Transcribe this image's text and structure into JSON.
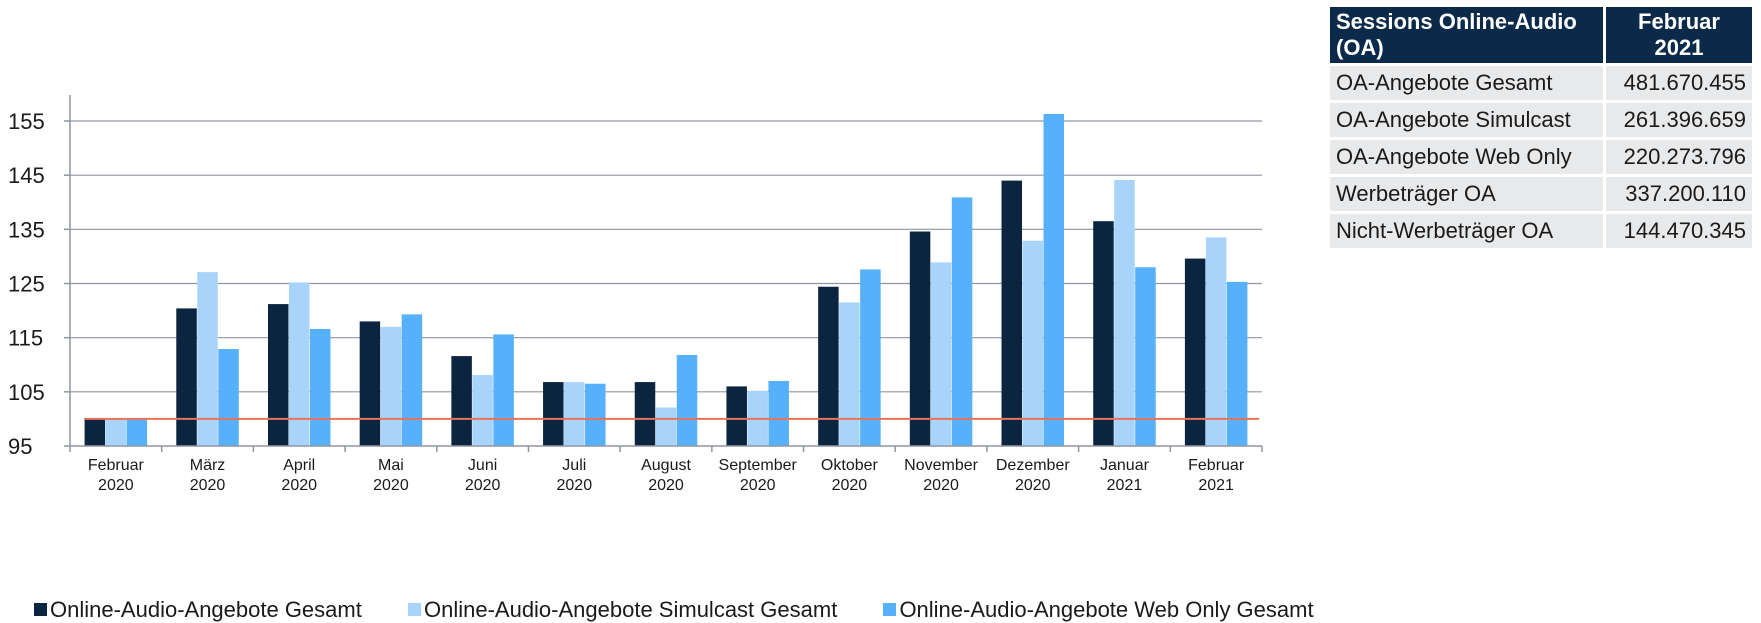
{
  "chart_data": {
    "type": "bar",
    "categories": [
      [
        "Februar",
        "2020"
      ],
      [
        "März",
        "2020"
      ],
      [
        "April",
        "2020"
      ],
      [
        "Mai",
        "2020"
      ],
      [
        "Juni",
        "2020"
      ],
      [
        "Juli",
        "2020"
      ],
      [
        "August",
        "2020"
      ],
      [
        "September",
        "2020"
      ],
      [
        "Oktober",
        "2020"
      ],
      [
        "November",
        "2020"
      ],
      [
        "Dezember",
        "2020"
      ],
      [
        "Januar",
        "2021"
      ],
      [
        "Februar",
        "2021"
      ]
    ],
    "series": [
      {
        "name": "Online-Audio-Angebote Gesamt",
        "color": "#0b2440",
        "values": [
          100,
          120.4,
          121.2,
          118.0,
          111.6,
          106.8,
          106.8,
          106.0,
          124.4,
          134.6,
          144.0,
          136.5,
          129.6
        ]
      },
      {
        "name": "Online-Audio-Angebote Simulcast Gesamt",
        "color": "#a8d4fb",
        "values": [
          100,
          127.1,
          125.2,
          117.0,
          108.1,
          106.8,
          102.1,
          105.2,
          121.5,
          128.9,
          132.9,
          144.1,
          133.5
        ]
      },
      {
        "name": "Online-Audio-Angebote Web Only Gesamt",
        "color": "#57b0fa",
        "values": [
          100,
          112.9,
          116.6,
          119.3,
          115.6,
          106.5,
          111.8,
          107.0,
          127.6,
          140.9,
          156.3,
          128.0,
          125.3
        ]
      }
    ],
    "reference_line": {
      "value": 100,
      "color": "#e8735a"
    },
    "yticks": [
      95,
      105,
      115,
      125,
      135,
      145,
      155
    ],
    "ylim": [
      95,
      160
    ],
    "grid": true,
    "title": "",
    "xlabel": "",
    "ylabel": "",
    "legend_position": "bottom"
  },
  "table": {
    "header_label": "Sessions Online-Audio (OA)",
    "header_value": "Februar 2021",
    "rows": [
      {
        "label": "OA-Angebote Gesamt",
        "value": "481.670.455"
      },
      {
        "label": "OA-Angebote Simulcast",
        "value": "261.396.659"
      },
      {
        "label": "OA-Angebote Web Only",
        "value": "220.273.796"
      },
      {
        "label": "Werbeträger OA",
        "value": "337.200.110"
      },
      {
        "label": "Nicht-Werbeträger OA",
        "value": "144.470.345"
      }
    ],
    "colors": {
      "header_bg": "#0b2a4a",
      "cell_bg": "#e8e9eb"
    }
  }
}
